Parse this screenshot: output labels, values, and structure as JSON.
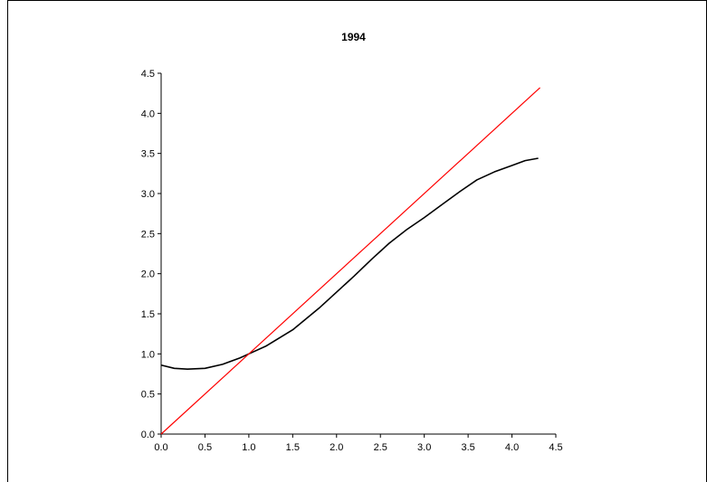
{
  "chart_data": {
    "type": "line",
    "title": "1994",
    "xlabel": "",
    "ylabel": "",
    "xlim": [
      0,
      4.5
    ],
    "ylim": [
      0,
      4.5
    ],
    "x_ticks": [
      "0.0",
      "0.5",
      "1.0",
      "1.5",
      "2.0",
      "2.5",
      "3.0",
      "3.5",
      "4.0",
      "4.5"
    ],
    "y_ticks": [
      "0.0",
      "0.5",
      "1.0",
      "1.5",
      "2.0",
      "2.5",
      "3.0",
      "3.5",
      "4.0",
      "4.5"
    ],
    "grid": false,
    "legend": "none",
    "series": [
      {
        "color": "#000000",
        "x": [
          0.0,
          0.15,
          0.3,
          0.5,
          0.7,
          0.9,
          1.0,
          1.2,
          1.5,
          1.8,
          2.0,
          2.2,
          2.4,
          2.6,
          2.8,
          3.0,
          3.2,
          3.4,
          3.6,
          3.8,
          4.0,
          4.15,
          4.3
        ],
        "y": [
          0.86,
          0.82,
          0.81,
          0.82,
          0.87,
          0.95,
          1.0,
          1.1,
          1.3,
          1.57,
          1.77,
          1.97,
          2.18,
          2.38,
          2.55,
          2.7,
          2.86,
          3.02,
          3.17,
          3.27,
          3.35,
          3.41,
          3.44
        ]
      },
      {
        "color": "#ff0000",
        "x": [
          0.0,
          4.32
        ],
        "y": [
          0.0,
          4.32
        ]
      }
    ]
  }
}
